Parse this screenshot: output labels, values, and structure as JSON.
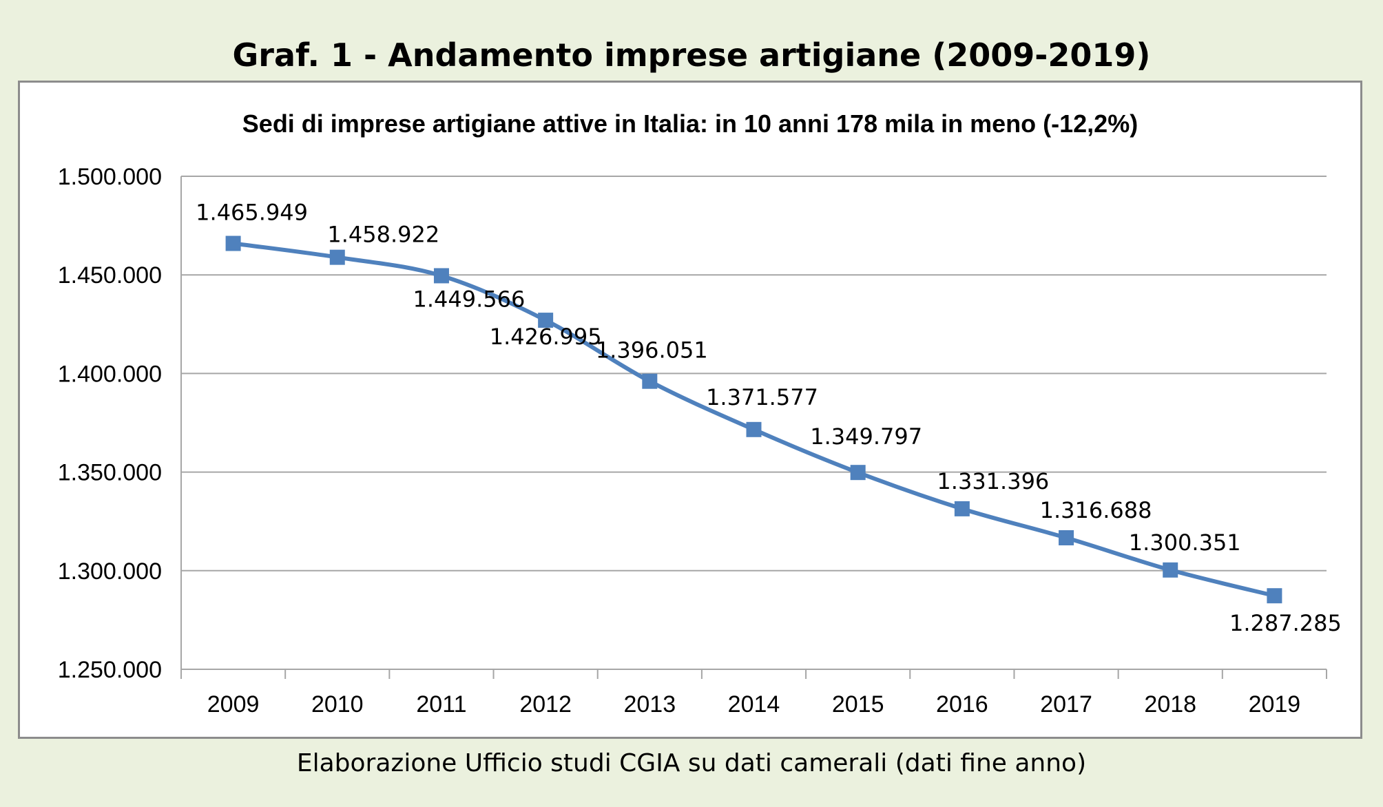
{
  "heading": "Graf. 1 - Andamento imprese artigiane (2009-2019)",
  "source_note": "Elaborazione Ufficio studi CGIA su dati camerali (dati fine anno)",
  "colors": {
    "background": "#ebf1de",
    "series": "#4f81bd",
    "gridline": "#a6a6a6",
    "frame_border": "#8c8c8c"
  },
  "chart_data": {
    "type": "line",
    "title": "Sedi di imprese artigiane attive in Italia: in 10 anni 178 mila in meno (-12,2%)",
    "xlabel": "",
    "ylabel": "",
    "categories": [
      "2009",
      "2010",
      "2011",
      "2012",
      "2013",
      "2014",
      "2015",
      "2016",
      "2017",
      "2018",
      "2019"
    ],
    "series": [
      {
        "values": [
          1465949,
          1458922,
          1449566,
          1426995,
          1396051,
          1371577,
          1349797,
          1331396,
          1316688,
          1300351,
          1287285
        ],
        "labels": [
          "1.465.949",
          "1.458.922",
          "1.449.566",
          "1.426.995",
          "1.396.051",
          "1.371.577",
          "1.349.797",
          "1.331.396",
          "1.316.688",
          "1.300.351",
          "1.287.285"
        ]
      }
    ],
    "ylim": [
      1250000,
      1500000
    ],
    "yticks": [
      1250000,
      1300000,
      1350000,
      1400000,
      1450000,
      1500000
    ],
    "ytick_labels": [
      "1.250.000",
      "1.300.000",
      "1.350.000",
      "1.400.000",
      "1.450.000",
      "1.500.000"
    ],
    "grid": true,
    "legend": "none",
    "marker": "square",
    "smooth": true
  }
}
